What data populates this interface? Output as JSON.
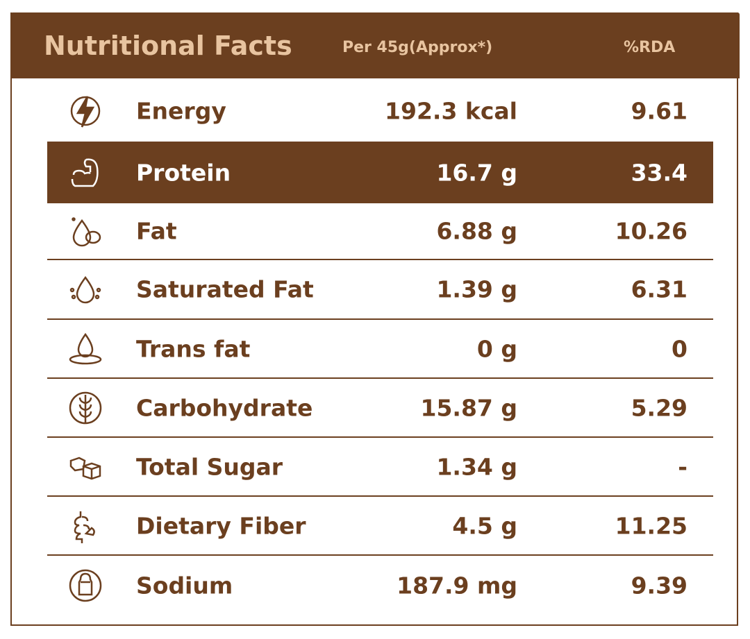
{
  "header": {
    "title": "Nutritional Facts",
    "per_label": "Per 45g(Approx*)",
    "rda_label": "%RDA"
  },
  "colors": {
    "brand": "#6b3f1f",
    "title": "#e8c4a0"
  },
  "rows": [
    {
      "icon": "lightning-icon",
      "name": "Energy",
      "value": "192.3 kcal",
      "rda": "9.61"
    },
    {
      "icon": "flexed-arm-icon",
      "name": "Protein",
      "value": "16.7 g",
      "rda": "33.4"
    },
    {
      "icon": "oil-drop-nut-icon",
      "name": "Fat",
      "value": "6.88 g",
      "rda": "10.26"
    },
    {
      "icon": "fat-drop-icon",
      "name": "Saturated Fat",
      "value": "1.39 g",
      "rda": "6.31"
    },
    {
      "icon": "drop-ripple-icon",
      "name": "Trans fat",
      "value": "0 g",
      "rda": "0"
    },
    {
      "icon": "wheat-icon",
      "name": "Carbohydrate",
      "value": "15.87 g",
      "rda": "5.29"
    },
    {
      "icon": "sugar-cubes-icon",
      "name": "Total Sugar",
      "value": "1.34 g",
      "rda": "-"
    },
    {
      "icon": "intestine-icon",
      "name": "Dietary Fiber",
      "value": "4.5 g",
      "rda": "11.25"
    },
    {
      "icon": "salt-shaker-icon",
      "name": "Sodium",
      "value": "187.9 mg",
      "rda": "9.39"
    }
  ]
}
